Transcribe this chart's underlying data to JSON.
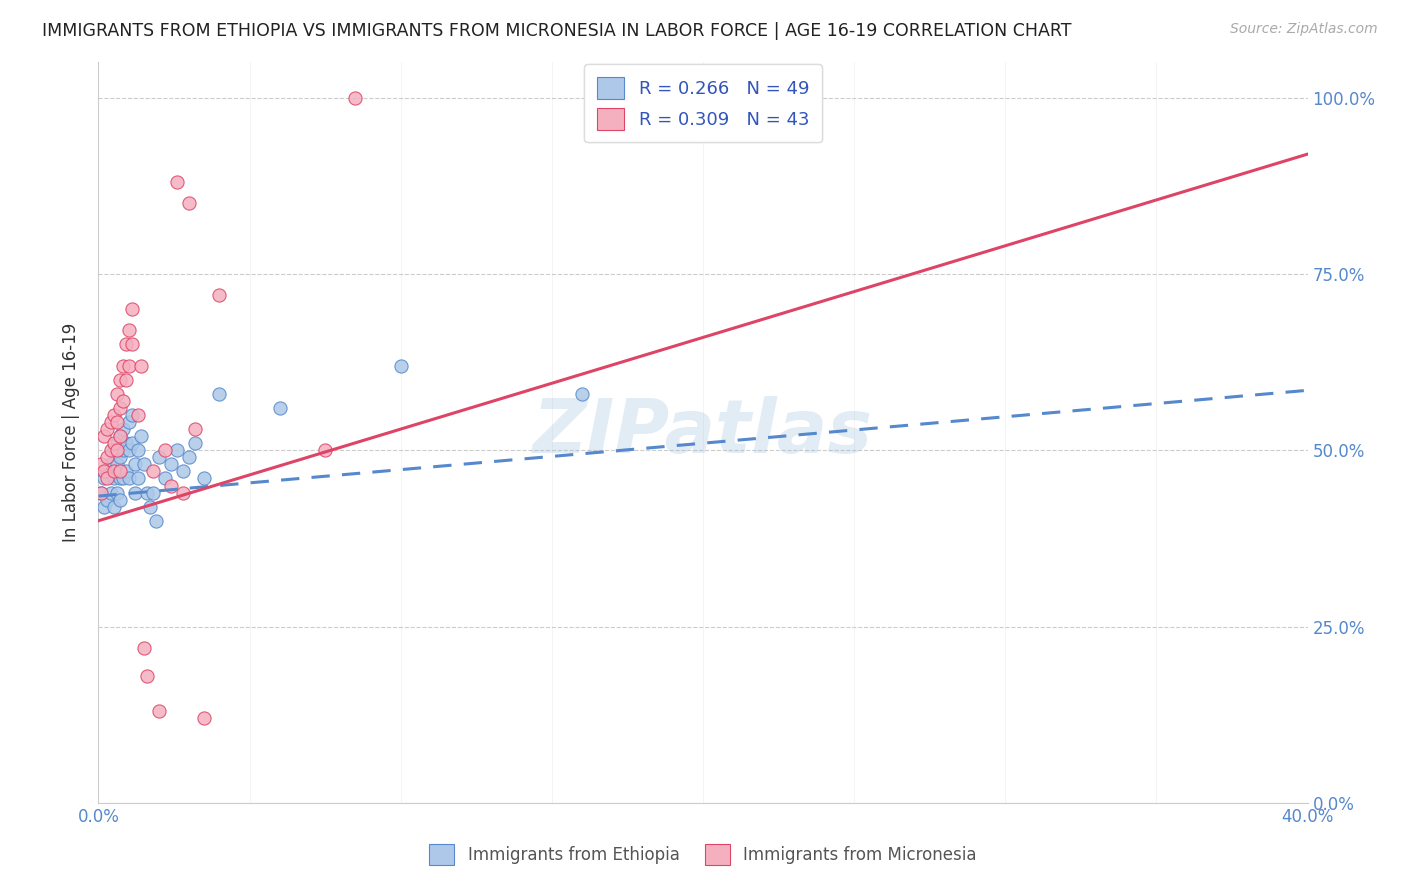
{
  "title": "IMMIGRANTS FROM ETHIOPIA VS IMMIGRANTS FROM MICRONESIA IN LABOR FORCE | AGE 16-19 CORRELATION CHART",
  "source": "Source: ZipAtlas.com",
  "ylabel": "In Labor Force | Age 16-19",
  "xlim": [
    0.0,
    0.4
  ],
  "ylim": [
    0.0,
    1.05
  ],
  "yticks": [
    0.0,
    0.25,
    0.5,
    0.75,
    1.0
  ],
  "xticks": [
    0.0,
    0.05,
    0.1,
    0.15,
    0.2,
    0.25,
    0.3,
    0.35,
    0.4
  ],
  "xtick_labels": [
    "0.0%",
    "",
    "",
    "",
    "",
    "",
    "",
    "",
    "40.0%"
  ],
  "ytick_labels": [
    "0.0%",
    "25.0%",
    "50.0%",
    "75.0%",
    "100.0%"
  ],
  "ethiopia_color": "#adc8e8",
  "micronesia_color": "#f5b0c0",
  "ethiopia_R": 0.266,
  "ethiopia_N": 49,
  "micronesia_R": 0.309,
  "micronesia_N": 43,
  "trend_ethiopia_color": "#5588cc",
  "trend_micronesia_color": "#dd4466",
  "watermark": "ZIPatlas",
  "legend_text_color": "#3355bb",
  "ethiopia_x": [
    0.001,
    0.002,
    0.002,
    0.003,
    0.003,
    0.004,
    0.004,
    0.005,
    0.005,
    0.005,
    0.006,
    0.006,
    0.006,
    0.007,
    0.007,
    0.007,
    0.007,
    0.008,
    0.008,
    0.008,
    0.009,
    0.009,
    0.01,
    0.01,
    0.01,
    0.011,
    0.011,
    0.012,
    0.012,
    0.013,
    0.013,
    0.014,
    0.015,
    0.016,
    0.017,
    0.018,
    0.019,
    0.02,
    0.022,
    0.024,
    0.026,
    0.028,
    0.03,
    0.032,
    0.035,
    0.04,
    0.06,
    0.1,
    0.16
  ],
  "ethiopia_y": [
    0.44,
    0.46,
    0.42,
    0.47,
    0.43,
    0.48,
    0.44,
    0.5,
    0.46,
    0.42,
    0.51,
    0.48,
    0.44,
    0.52,
    0.49,
    0.46,
    0.43,
    0.53,
    0.5,
    0.46,
    0.51,
    0.47,
    0.54,
    0.5,
    0.46,
    0.55,
    0.51,
    0.48,
    0.44,
    0.5,
    0.46,
    0.52,
    0.48,
    0.44,
    0.42,
    0.44,
    0.4,
    0.49,
    0.46,
    0.48,
    0.5,
    0.47,
    0.49,
    0.51,
    0.46,
    0.58,
    0.56,
    0.62,
    0.58
  ],
  "micronesia_x": [
    0.001,
    0.001,
    0.002,
    0.002,
    0.003,
    0.003,
    0.003,
    0.004,
    0.004,
    0.005,
    0.005,
    0.005,
    0.006,
    0.006,
    0.006,
    0.007,
    0.007,
    0.007,
    0.007,
    0.008,
    0.008,
    0.009,
    0.009,
    0.01,
    0.01,
    0.011,
    0.011,
    0.013,
    0.014,
    0.015,
    0.016,
    0.018,
    0.02,
    0.022,
    0.024,
    0.026,
    0.028,
    0.03,
    0.032,
    0.035,
    0.04,
    0.075,
    0.085
  ],
  "micronesia_y": [
    0.48,
    0.44,
    0.52,
    0.47,
    0.53,
    0.49,
    0.46,
    0.54,
    0.5,
    0.55,
    0.51,
    0.47,
    0.58,
    0.54,
    0.5,
    0.6,
    0.56,
    0.52,
    0.47,
    0.62,
    0.57,
    0.65,
    0.6,
    0.67,
    0.62,
    0.7,
    0.65,
    0.55,
    0.62,
    0.22,
    0.18,
    0.47,
    0.13,
    0.5,
    0.45,
    0.88,
    0.44,
    0.85,
    0.53,
    0.12,
    0.72,
    0.5,
    1.0
  ],
  "ethiopia_trend_x0": 0.0,
  "ethiopia_trend_y0": 0.435,
  "ethiopia_trend_x1": 0.4,
  "ethiopia_trend_y1": 0.585,
  "micronesia_trend_x0": 0.0,
  "micronesia_trend_y0": 0.4,
  "micronesia_trend_x1": 0.4,
  "micronesia_trend_y1": 0.92
}
